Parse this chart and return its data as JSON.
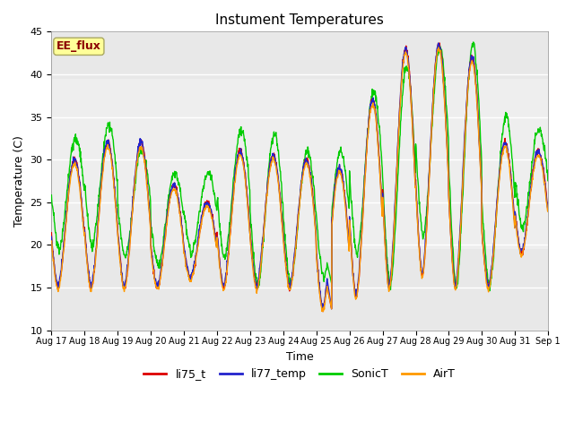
{
  "title": "Instument Temperatures",
  "xlabel": "Time",
  "ylabel": "Temperature (C)",
  "ylim": [
    10,
    45
  ],
  "xtick_labels": [
    "Aug 17",
    "Aug 18",
    "Aug 19",
    "Aug 20",
    "Aug 21",
    "Aug 22",
    "Aug 23",
    "Aug 24",
    "Aug 25",
    "Aug 26",
    "Aug 27",
    "Aug 28",
    "Aug 29",
    "Aug 30",
    "Aug 31",
    "Sep 1"
  ],
  "background_color": "#ffffff",
  "plot_bg_color": "#e8e8e8",
  "shaded_band_lo": 19.5,
  "shaded_band_hi": 39.5,
  "annotation_text": "EE_flux",
  "annotation_color": "#8b0000",
  "annotation_bg": "#ffff99",
  "series_colors": {
    "li75_t": "#dd0000",
    "li77_temp": "#2222cc",
    "SonicT": "#00cc00",
    "AirT": "#ff9900"
  },
  "day_maxes_li75": [
    30,
    32,
    32,
    27,
    25,
    31,
    30.5,
    30,
    29,
    37,
    43,
    43.5,
    42,
    32,
    31
  ],
  "day_maxes_sonic": [
    32.5,
    34,
    31,
    28.5,
    28.5,
    33.5,
    33,
    31,
    31,
    38,
    41,
    43,
    43.5,
    35,
    33.5
  ],
  "day_mins_base": [
    15,
    15,
    15,
    15,
    16,
    15,
    15,
    15,
    12.5,
    14,
    15,
    16.5,
    15,
    15,
    19
  ],
  "day_mins_sonic": [
    19.5,
    20,
    18.5,
    17.5,
    19,
    18.5,
    15,
    15.5,
    16,
    19,
    15,
    21,
    15,
    15,
    22
  ]
}
